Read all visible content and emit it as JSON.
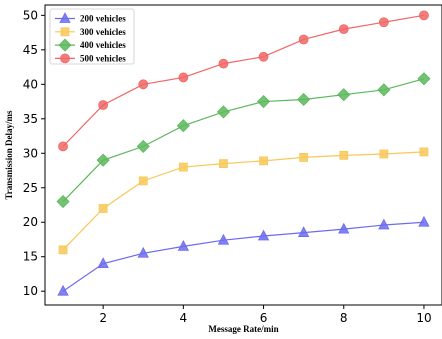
{
  "chart_data": {
    "type": "line",
    "title": "",
    "xlabel": "Message Rate/min",
    "ylabel": "Transmission Delay/ms",
    "x": [
      1,
      2,
      3,
      4,
      5,
      6,
      7,
      8,
      9,
      10
    ],
    "xlim": [
      0.55,
      10.45
    ],
    "ylim": [
      8.0,
      51.5
    ],
    "xticks": [
      2,
      4,
      6,
      8,
      10
    ],
    "yticks": [
      10,
      15,
      20,
      25,
      30,
      35,
      40,
      45,
      50
    ],
    "grid": false,
    "legend_position": "top-left",
    "series": [
      {
        "name": "200 vehicles",
        "color": "#6b6bf0",
        "marker": "triangle",
        "values": [
          10.0,
          14.0,
          15.5,
          16.5,
          17.4,
          18.0,
          18.5,
          19.0,
          19.6,
          20.0
        ]
      },
      {
        "name": "300 vehicles",
        "color": "#f8c858",
        "marker": "square",
        "values": [
          16.0,
          22.0,
          26.0,
          28.0,
          28.5,
          28.9,
          29.4,
          29.7,
          29.9,
          30.2
        ]
      },
      {
        "name": "400 vehicles",
        "color": "#5cb85c",
        "marker": "diamond",
        "values": [
          23.0,
          29.0,
          31.0,
          34.0,
          36.0,
          37.5,
          37.8,
          38.5,
          39.2,
          40.8
        ]
      },
      {
        "name": "500 vehicles",
        "color": "#f06666",
        "marker": "circle",
        "values": [
          31.0,
          37.0,
          40.0,
          41.0,
          43.0,
          44.0,
          46.5,
          48.0,
          49.0,
          50.0
        ]
      }
    ]
  }
}
